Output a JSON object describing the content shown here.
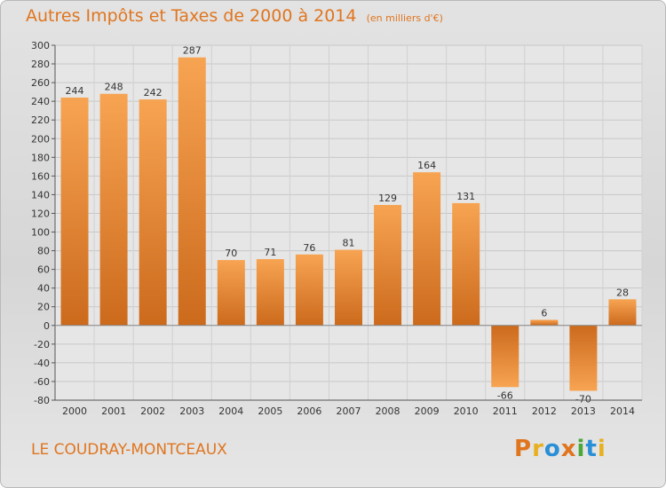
{
  "header": {
    "title": "Autres Impôts et Taxes de 2000 à 2014",
    "subtitle": "(en milliers d'€)"
  },
  "footer": {
    "location": "LE COUDRAY-MONTCEAUX",
    "logo_text": "Proxiti"
  },
  "colors": {
    "accent": "#e0751e",
    "bar_light": "#f7a452",
    "bar_dark": "#cc6a1c",
    "logo": [
      "#e0751e",
      "#e8b020",
      "#2a8fd6",
      "#e0751e",
      "#4aa838",
      "#2a8fd6",
      "#e8b020"
    ]
  },
  "chart_data": {
    "type": "bar",
    "title": "Autres Impôts et Taxes de 2000 à 2014",
    "subtitle": "(en milliers d'€)",
    "categories": [
      "2000",
      "2001",
      "2002",
      "2003",
      "2004",
      "2005",
      "2006",
      "2007",
      "2008",
      "2009",
      "2010",
      "2011",
      "2012",
      "2013",
      "2014"
    ],
    "values": [
      244,
      248,
      242,
      287,
      70,
      71,
      76,
      81,
      129,
      164,
      131,
      -66,
      6,
      -70,
      28
    ],
    "value_labels": [
      "244",
      "248",
      "242",
      "287",
      "70",
      "71",
      "76",
      "81",
      "129",
      "164",
      "131",
      "-66",
      "6",
      "-70",
      "28"
    ],
    "ylim": [
      -80,
      300
    ],
    "yticks": [
      -80,
      -60,
      -40,
      -20,
      0,
      20,
      40,
      60,
      80,
      100,
      120,
      140,
      160,
      180,
      200,
      220,
      240,
      260,
      280,
      300
    ],
    "grid": true,
    "legend": "none"
  }
}
